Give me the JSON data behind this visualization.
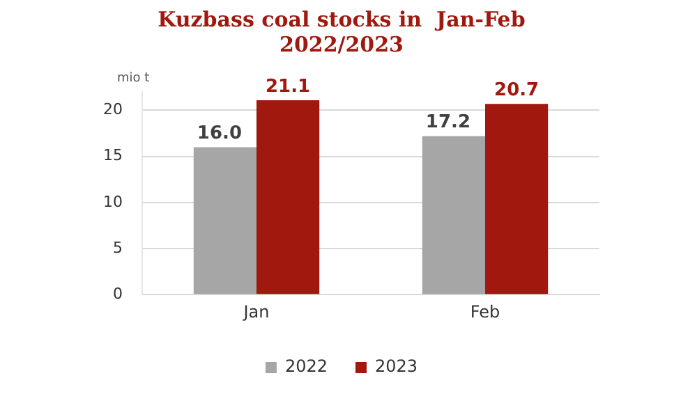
{
  "chart_data": {
    "type": "bar",
    "title": [
      "Kuzbass coal stocks in  Jan-Feb",
      "2022/2023"
    ],
    "ylabel": "mio t",
    "categories": [
      "Jan",
      "Feb"
    ],
    "series": [
      {
        "name": "2022",
        "color": "#a6a6a6",
        "values": [
          16.0,
          17.2
        ],
        "value_labels": [
          "16.0",
          "17.2"
        ]
      },
      {
        "name": "2023",
        "color": "#a0180e",
        "values": [
          21.1,
          20.7
        ],
        "value_labels": [
          "21.1",
          "20.7"
        ]
      }
    ],
    "ylim": [
      0,
      22
    ],
    "yticks": [
      0,
      5,
      10,
      15,
      20
    ],
    "grid": "y",
    "legend": "bottom"
  }
}
